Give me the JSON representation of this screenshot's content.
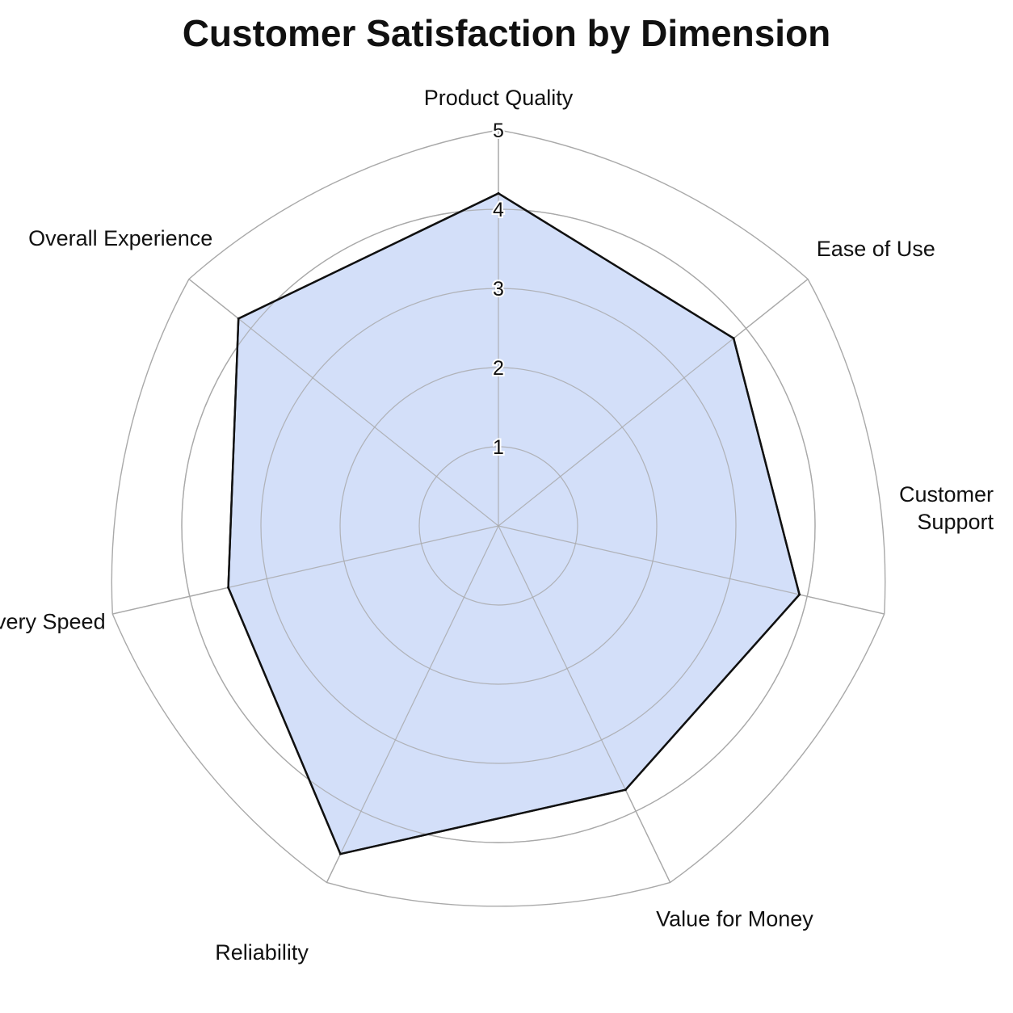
{
  "chart_data": {
    "type": "radar",
    "title": "Customer Satisfaction by Dimension",
    "categories": [
      "Product Quality",
      "Ease of Use",
      "Customer Support",
      "Value for Money",
      "Reliability",
      "Delivery Speed",
      "Overall Experience"
    ],
    "category_lines": [
      [
        "Product Quality"
      ],
      [
        "Ease of Use"
      ],
      [
        "Customer",
        "Support"
      ],
      [
        "Value for Money"
      ],
      [
        "Reliability"
      ],
      [
        "Delivery Speed"
      ],
      [
        "Overall Experience"
      ]
    ],
    "values": [
      4.2,
      3.8,
      3.9,
      3.7,
      4.6,
      3.5,
      4.2
    ],
    "rlim": [
      0,
      5
    ],
    "r_ticks": [
      1,
      2,
      3,
      4,
      5
    ],
    "grid": true,
    "fill_color": "#cfdcf8",
    "line_color": "#111111",
    "grid_color": "#a9a9a9"
  }
}
